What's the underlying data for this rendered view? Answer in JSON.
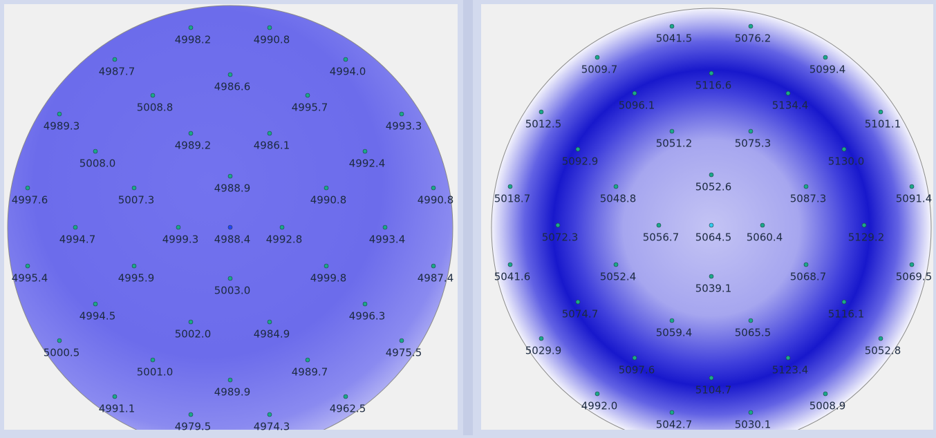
{
  "panels": [
    {
      "points": [
        "4998.2",
        "4990.8",
        "4987.7",
        "4994.0",
        "4986.6",
        "5008.8",
        "4995.7",
        "4989.3",
        "4993.3",
        "4989.2",
        "4986.1",
        "5008.0",
        "4992.4",
        "4988.9",
        "4997.6",
        "5007.3",
        "4990.8",
        "4990.8",
        "4994.7",
        "4999.3",
        "4988.4",
        "4992.8",
        "4993.4",
        "4995.4",
        "4995.9",
        "4999.8",
        "4987.4",
        "5003.0",
        "4994.5",
        "4996.3",
        "5002.0",
        "4984.9",
        "5000.5",
        "4975.5",
        "5001.0",
        "4989.7",
        "4989.9",
        "4991.1",
        "4962.5",
        "4979.5",
        "4974.3"
      ]
    },
    {
      "points": [
        "5041.5",
        "5076.2",
        "5009.7",
        "5099.4",
        "5116.6",
        "5096.1",
        "5134.4",
        "5012.5",
        "5101.1",
        "5051.2",
        "5075.3",
        "5092.9",
        "5130.0",
        "5052.6",
        "5018.7",
        "5048.8",
        "5087.3",
        "5091.4",
        "5072.3",
        "5056.7",
        "5064.5",
        "5060.4",
        "5129.2",
        "5041.6",
        "5052.4",
        "5068.7",
        "5069.5",
        "5039.1",
        "5074.7",
        "5116.1",
        "5059.4",
        "5065.5",
        "5029.9",
        "5052.8",
        "5097.6",
        "5123.4",
        "5104.7",
        "4992.0",
        "5008.9",
        "5042.7",
        "5030.1"
      ]
    }
  ]
}
